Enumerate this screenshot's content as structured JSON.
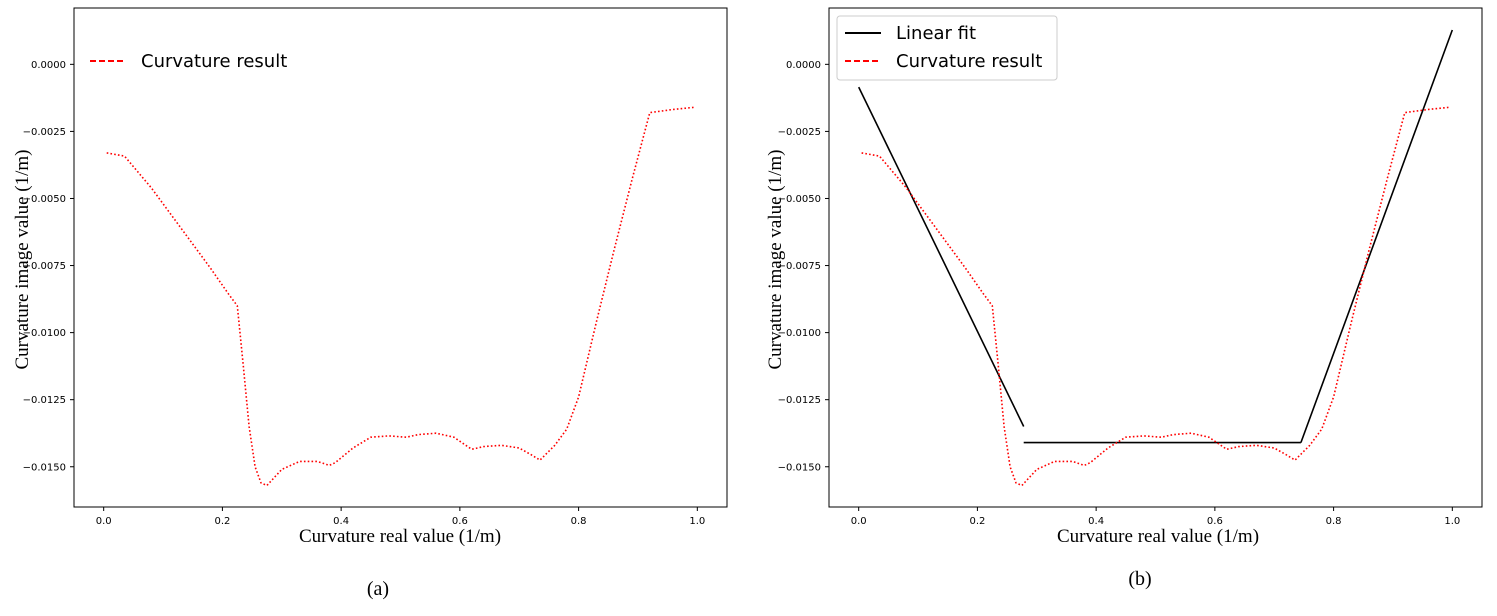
{
  "chart_data": [
    {
      "type": "line",
      "caption": "(a)",
      "xlabel": "Curvature real value (1/m)",
      "ylabel": "Curvature image value (1/m)",
      "xlim": [
        -0.05,
        1.05
      ],
      "ylim": [
        -0.0165,
        0.0021
      ],
      "xticks": [
        0.0,
        0.2,
        0.4,
        0.6,
        0.8,
        1.0
      ],
      "xtick_labels": [
        "0.0",
        "0.2",
        "0.4",
        "0.6",
        "0.8",
        "1.0"
      ],
      "yticks": [
        0.0,
        -0.0025,
        -0.005,
        -0.0075,
        -0.01,
        -0.0125,
        -0.015
      ],
      "ytick_labels": [
        "0.0000",
        "−0.0025",
        "−0.0050",
        "−0.0075",
        "−0.0100",
        "−0.0125",
        "−0.0150"
      ],
      "grid": false,
      "legend_position": "upper-left",
      "series": [
        {
          "name": "Curvature result",
          "color": "#ff0000",
          "style": "dotted",
          "x": [
            0.005,
            0.035,
            0.08,
            0.13,
            0.18,
            0.21,
            0.225,
            0.235,
            0.245,
            0.255,
            0.265,
            0.275,
            0.3,
            0.33,
            0.36,
            0.38,
            0.39,
            0.42,
            0.45,
            0.48,
            0.51,
            0.53,
            0.56,
            0.59,
            0.61,
            0.62,
            0.64,
            0.67,
            0.7,
            0.72,
            0.735,
            0.76,
            0.78,
            0.8,
            0.83,
            0.86,
            0.89,
            0.92,
            0.96,
            0.995
          ],
          "y": [
            -0.0033,
            -0.00342,
            -0.0046,
            -0.0061,
            -0.0076,
            -0.00855,
            -0.009,
            -0.0112,
            -0.0135,
            -0.015,
            -0.0156,
            -0.0157,
            -0.0151,
            -0.0148,
            -0.0148,
            -0.01495,
            -0.01485,
            -0.0143,
            -0.0139,
            -0.01385,
            -0.0139,
            -0.0138,
            -0.01375,
            -0.0139,
            -0.0142,
            -0.01435,
            -0.01425,
            -0.0142,
            -0.0143,
            -0.01455,
            -0.01475,
            -0.0142,
            -0.0136,
            -0.0124,
            -0.0096,
            -0.0069,
            -0.0043,
            -0.0018,
            -0.00168,
            -0.0016
          ]
        }
      ]
    },
    {
      "type": "line",
      "caption": "(b)",
      "xlabel": "Curvature real value (1/m)",
      "ylabel": "Curvature image value (1/m)",
      "xlim": [
        -0.05,
        1.05
      ],
      "ylim": [
        -0.0165,
        0.0021
      ],
      "xticks": [
        0.0,
        0.2,
        0.4,
        0.6,
        0.8,
        1.0
      ],
      "xtick_labels": [
        "0.0",
        "0.2",
        "0.4",
        "0.6",
        "0.8",
        "1.0"
      ],
      "yticks": [
        0.0,
        -0.0025,
        -0.005,
        -0.0075,
        -0.01,
        -0.0125,
        -0.015
      ],
      "ytick_labels": [
        "0.0000",
        "−0.0025",
        "−0.0050",
        "−0.0075",
        "−0.0100",
        "−0.0125",
        "−0.0150"
      ],
      "grid": false,
      "legend_position": "upper-left",
      "series": [
        {
          "name": "Linear fit",
          "color": "#000000",
          "style": "solid",
          "segments": [
            {
              "x": [
                0.0,
                0.278
              ],
              "y": [
                -0.00085,
                -0.0135
              ]
            },
            {
              "x": [
                0.278,
                0.745
              ],
              "y": [
                -0.0141,
                -0.0141
              ]
            },
            {
              "x": [
                0.745,
                1.0
              ],
              "y": [
                -0.0141,
                0.00128
              ]
            }
          ]
        },
        {
          "name": "Curvature result",
          "color": "#ff0000",
          "style": "dotted",
          "x": [
            0.005,
            0.035,
            0.08,
            0.13,
            0.18,
            0.21,
            0.225,
            0.235,
            0.245,
            0.255,
            0.265,
            0.275,
            0.3,
            0.33,
            0.36,
            0.38,
            0.39,
            0.42,
            0.45,
            0.48,
            0.51,
            0.53,
            0.56,
            0.59,
            0.61,
            0.62,
            0.64,
            0.67,
            0.7,
            0.72,
            0.735,
            0.76,
            0.78,
            0.8,
            0.83,
            0.86,
            0.89,
            0.92,
            0.96,
            0.995
          ],
          "y": [
            -0.0033,
            -0.00342,
            -0.0046,
            -0.0061,
            -0.0076,
            -0.00855,
            -0.009,
            -0.0112,
            -0.0135,
            -0.015,
            -0.0156,
            -0.0157,
            -0.0151,
            -0.0148,
            -0.0148,
            -0.01495,
            -0.01485,
            -0.0143,
            -0.0139,
            -0.01385,
            -0.0139,
            -0.0138,
            -0.01375,
            -0.0139,
            -0.0142,
            -0.01435,
            -0.01425,
            -0.0142,
            -0.0143,
            -0.01455,
            -0.01475,
            -0.0142,
            -0.0136,
            -0.0124,
            -0.0096,
            -0.0069,
            -0.0043,
            -0.0018,
            -0.00168,
            -0.0016
          ]
        }
      ]
    }
  ]
}
